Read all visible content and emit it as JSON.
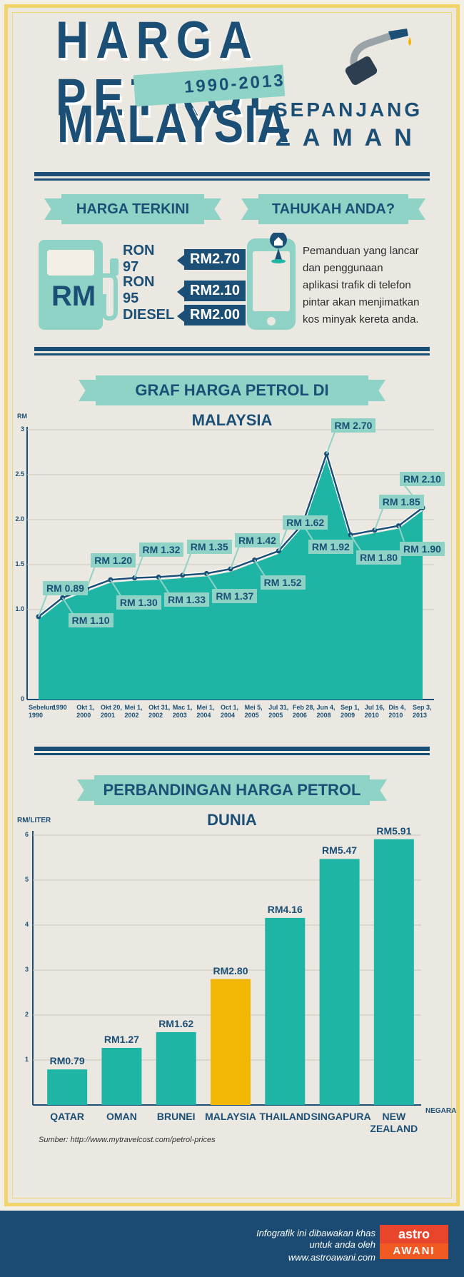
{
  "header": {
    "title_line1": "HARGA PETROL",
    "years": "1990-2013",
    "title_line2": "MALAYSIA",
    "sub1": "SEPANJANG",
    "sub2": "ZAMAN"
  },
  "current": {
    "ribbon": "HARGA TERKINI",
    "pump_label": "RM",
    "fuels": [
      {
        "name": "RON 97",
        "price": "RM2.70"
      },
      {
        "name": "RON 95",
        "price": "RM2.10"
      },
      {
        "name": "DIESEL",
        "price": "RM2.00"
      }
    ]
  },
  "tip": {
    "ribbon": "TAHUKAH ANDA?",
    "text": "Pemanduan yang lancar dan penggunaan aplikasi trafik di telefon pintar akan menjimatkan kos minyak kereta anda."
  },
  "chart_data": [
    {
      "type": "area",
      "title": "GRAF HARGA PETROL DI MALAYSIA",
      "ylabel": "RM",
      "ylim": [
        0,
        3
      ],
      "yticks": [
        "0",
        "1.0",
        "1.5",
        "2.0",
        "2.5",
        "3"
      ],
      "categories": [
        "Sebelum 1990",
        "1990",
        "Okt 1, 2000",
        "Okt 20, 2001",
        "Mei 1, 2002",
        "Okt 31, 2002",
        "Mac 1, 2003",
        "Mei 1, 2004",
        "Oct 1, 2004",
        "Mei 5, 2005",
        "Jul 31, 2005",
        "Feb 28, 2006",
        "Jun 4, 2008",
        "Sep 1, 2009",
        "Jul 16, 2010",
        "Dis 4, 2010",
        "Sep 3, 2013"
      ],
      "values": [
        0.89,
        1.1,
        1.2,
        1.3,
        1.32,
        1.33,
        1.35,
        1.37,
        1.42,
        1.52,
        1.62,
        1.92,
        2.7,
        1.8,
        1.85,
        1.9,
        2.1
      ],
      "labels": [
        "RM 0.89",
        "RM 1.10",
        "RM 1.20",
        "RM 1.30",
        "RM 1.32",
        "RM 1.33",
        "RM 1.35",
        "RM 1.37",
        "RM 1.42",
        "RM 1.52",
        "RM 1.62",
        "RM 1.92",
        "RM 2.70",
        "RM 1.80",
        "RM 1.85",
        "RM 1.90",
        "RM 2.10"
      ],
      "colors": {
        "area": "#1eb5a5",
        "line": "#1b4f75"
      }
    },
    {
      "type": "bar",
      "title": "PERBANDINGAN HARGA PETROL DUNIA",
      "ylabel": "RM/LITER",
      "xlabel": "NEGARA",
      "ylim": [
        0,
        6
      ],
      "yticks": [
        "1",
        "2",
        "3",
        "4",
        "5",
        "6"
      ],
      "categories": [
        "QATAR",
        "OMAN",
        "BRUNEI",
        "MALAYSIA",
        "THAILAND",
        "SINGAPURA",
        "NEW ZEALAND"
      ],
      "values": [
        0.79,
        1.27,
        1.62,
        2.8,
        4.16,
        5.47,
        5.91
      ],
      "labels": [
        "RM0.79",
        "RM1.27",
        "RM1.62",
        "RM2.80",
        "RM4.16",
        "RM5.47",
        "RM5.91"
      ],
      "colors": {
        "bar": "#1eb5a5",
        "highlight": "#f2b705",
        "highlight_category": "MALAYSIA"
      }
    }
  ],
  "source": "Sumber: http://www.mytravelcost.com/petrol-prices",
  "footer": {
    "line1": "Infografik ini dibawakan khas",
    "line2": "untuk anda oleh",
    "url": "www.astroawani.com",
    "logo_top": "astro",
    "logo_bottom": "AWANI"
  }
}
